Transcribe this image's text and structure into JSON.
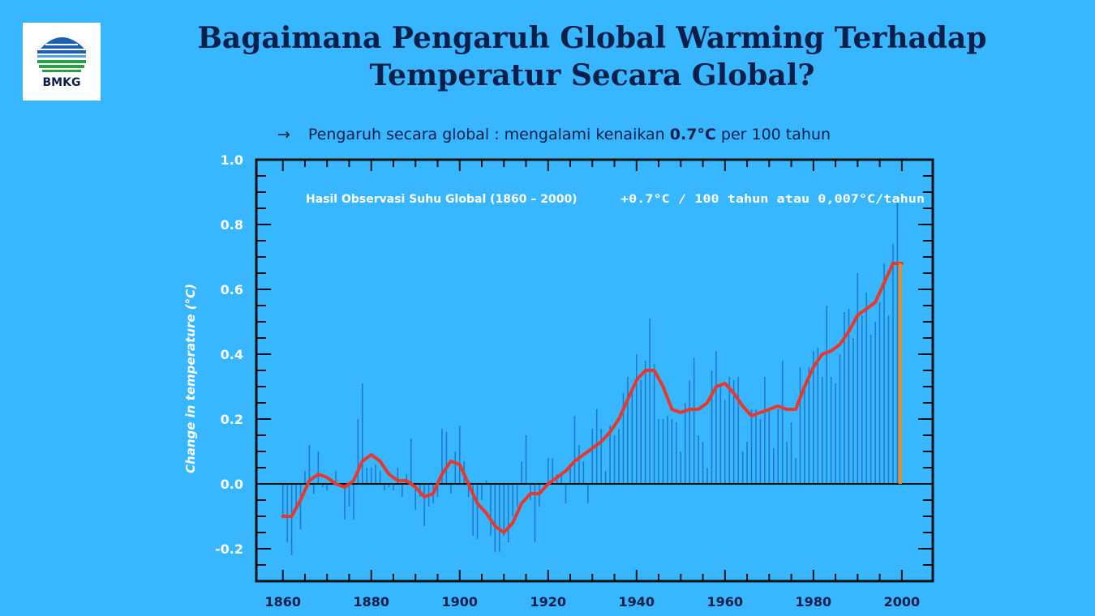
{
  "logo": {
    "text": "BMKG"
  },
  "title": {
    "line1": "Bagaimana Pengaruh Global Warming Terhadap",
    "line2": "Temperatur Secara Global?"
  },
  "subtitle": {
    "arrow": "→",
    "prefix": "Pengaruh secara global : mengalami kenaikan",
    "highlight": "0.7°C",
    "suffix": "per 100 tahun"
  },
  "colors": {
    "background": "#38b6ff",
    "bar": "#1f77c9",
    "trend": "#e8382b",
    "marker": "#f08a1c",
    "text": "#0b1f4a"
  },
  "chart_data": {
    "type": "bar",
    "ylabel": "Change in temperature (°C)",
    "xlabel": "",
    "annotation_left": "Hasil Observasi Suhu Global (1860 – 2000)",
    "annotation_right": "+0.7°C / 100 tahun atau 0,007°C/tahun",
    "xlim": [
      1854,
      2007
    ],
    "ylim": [
      -0.3,
      1.0
    ],
    "x_ticks": [
      1860,
      1880,
      1900,
      1920,
      1940,
      1960,
      1980,
      2000
    ],
    "y_ticks": [
      -0.2,
      0.0,
      0.2,
      0.4,
      0.6,
      0.8,
      1.0
    ],
    "y_tick_labels": [
      "-0.2",
      "0.0",
      "0.2",
      "0.4",
      "0.6",
      "0.8",
      "1.0"
    ],
    "years": [
      1860,
      1861,
      1862,
      1863,
      1864,
      1865,
      1866,
      1867,
      1868,
      1869,
      1870,
      1871,
      1872,
      1873,
      1874,
      1875,
      1876,
      1877,
      1878,
      1879,
      1880,
      1881,
      1882,
      1883,
      1884,
      1885,
      1886,
      1887,
      1888,
      1889,
      1890,
      1891,
      1892,
      1893,
      1894,
      1895,
      1896,
      1897,
      1898,
      1899,
      1900,
      1901,
      1902,
      1903,
      1904,
      1905,
      1906,
      1907,
      1908,
      1909,
      1910,
      1911,
      1912,
      1913,
      1914,
      1915,
      1916,
      1917,
      1918,
      1919,
      1920,
      1921,
      1922,
      1923,
      1924,
      1925,
      1926,
      1927,
      1928,
      1929,
      1930,
      1931,
      1932,
      1933,
      1934,
      1935,
      1936,
      1937,
      1938,
      1939,
      1940,
      1941,
      1942,
      1943,
      1944,
      1945,
      1946,
      1947,
      1948,
      1949,
      1950,
      1951,
      1952,
      1953,
      1954,
      1955,
      1956,
      1957,
      1958,
      1959,
      1960,
      1961,
      1962,
      1963,
      1964,
      1965,
      1966,
      1967,
      1968,
      1969,
      1970,
      1971,
      1972,
      1973,
      1974,
      1975,
      1976,
      1977,
      1978,
      1979,
      1980,
      1981,
      1982,
      1983,
      1984,
      1985,
      1986,
      1987,
      1988,
      1989,
      1990,
      1991,
      1992,
      1993,
      1994,
      1995,
      1996,
      1997,
      1998,
      1999
    ],
    "values": [
      -0.1,
      -0.18,
      -0.22,
      -0.08,
      -0.14,
      0.04,
      0.12,
      -0.03,
      0.1,
      -0.01,
      -0.02,
      0.01,
      0.04,
      -0.01,
      -0.11,
      -0.07,
      -0.11,
      0.2,
      0.31,
      0.05,
      0.05,
      0.06,
      0.04,
      -0.02,
      -0.01,
      -0.02,
      0.05,
      -0.04,
      0.03,
      0.14,
      -0.08,
      -0.04,
      -0.13,
      -0.07,
      -0.06,
      -0.04,
      0.17,
      0.16,
      -0.03,
      0.1,
      0.18,
      0.07,
      -0.04,
      -0.16,
      -0.17,
      -0.05,
      0.01,
      -0.16,
      -0.21,
      -0.21,
      -0.16,
      -0.18,
      -0.1,
      -0.07,
      0.07,
      0.15,
      -0.05,
      -0.18,
      -0.07,
      0.0,
      0.08,
      0.08,
      0.03,
      0.03,
      -0.06,
      0.06,
      0.21,
      0.12,
      0.07,
      -0.06,
      0.17,
      0.23,
      0.17,
      0.04,
      0.18,
      0.15,
      0.17,
      0.28,
      0.33,
      0.29,
      0.4,
      0.32,
      0.38,
      0.51,
      0.37,
      0.2,
      0.2,
      0.21,
      0.2,
      0.19,
      0.1,
      0.25,
      0.32,
      0.39,
      0.15,
      0.13,
      0.05,
      0.35,
      0.41,
      0.3,
      0.26,
      0.33,
      0.32,
      0.33,
      0.1,
      0.13,
      0.23,
      0.23,
      0.2,
      0.33,
      0.23,
      0.11,
      0.23,
      0.38,
      0.13,
      0.19,
      0.08,
      0.36,
      0.31,
      0.36,
      0.41,
      0.42,
      0.33,
      0.55,
      0.33,
      0.31,
      0.4,
      0.53,
      0.54,
      0.45,
      0.65,
      0.52,
      0.59,
      0.46,
      0.5,
      0.56,
      0.68,
      0.52,
      0.74,
      0.87
    ],
    "trend": [
      [
        1860,
        -0.1
      ],
      [
        1862,
        -0.1
      ],
      [
        1864,
        -0.05
      ],
      [
        1866,
        0.01
      ],
      [
        1868,
        0.03
      ],
      [
        1870,
        0.02
      ],
      [
        1872,
        0.0
      ],
      [
        1874,
        -0.01
      ],
      [
        1876,
        0.01
      ],
      [
        1878,
        0.07
      ],
      [
        1880,
        0.09
      ],
      [
        1882,
        0.07
      ],
      [
        1884,
        0.03
      ],
      [
        1886,
        0.01
      ],
      [
        1888,
        0.01
      ],
      [
        1890,
        -0.01
      ],
      [
        1892,
        -0.04
      ],
      [
        1894,
        -0.03
      ],
      [
        1896,
        0.03
      ],
      [
        1898,
        0.07
      ],
      [
        1900,
        0.06
      ],
      [
        1902,
        0.0
      ],
      [
        1904,
        -0.06
      ],
      [
        1906,
        -0.09
      ],
      [
        1908,
        -0.13
      ],
      [
        1910,
        -0.15
      ],
      [
        1912,
        -0.12
      ],
      [
        1914,
        -0.06
      ],
      [
        1916,
        -0.03
      ],
      [
        1918,
        -0.03
      ],
      [
        1920,
        0.0
      ],
      [
        1922,
        0.02
      ],
      [
        1924,
        0.04
      ],
      [
        1926,
        0.07
      ],
      [
        1928,
        0.09
      ],
      [
        1930,
        0.11
      ],
      [
        1932,
        0.13
      ],
      [
        1934,
        0.16
      ],
      [
        1936,
        0.2
      ],
      [
        1938,
        0.26
      ],
      [
        1940,
        0.32
      ],
      [
        1942,
        0.35
      ],
      [
        1944,
        0.35
      ],
      [
        1946,
        0.3
      ],
      [
        1948,
        0.23
      ],
      [
        1950,
        0.22
      ],
      [
        1952,
        0.23
      ],
      [
        1954,
        0.23
      ],
      [
        1956,
        0.25
      ],
      [
        1958,
        0.3
      ],
      [
        1960,
        0.31
      ],
      [
        1962,
        0.28
      ],
      [
        1964,
        0.24
      ],
      [
        1966,
        0.21
      ],
      [
        1968,
        0.22
      ],
      [
        1970,
        0.23
      ],
      [
        1972,
        0.24
      ],
      [
        1974,
        0.23
      ],
      [
        1976,
        0.23
      ],
      [
        1978,
        0.3
      ],
      [
        1980,
        0.36
      ],
      [
        1982,
        0.4
      ],
      [
        1984,
        0.41
      ],
      [
        1986,
        0.43
      ],
      [
        1988,
        0.47
      ],
      [
        1990,
        0.52
      ],
      [
        1992,
        0.54
      ],
      [
        1994,
        0.56
      ],
      [
        1996,
        0.62
      ],
      [
        1998,
        0.68
      ],
      [
        2000,
        0.68
      ]
    ],
    "marker": {
      "year": 1999.6,
      "value": 0.68
    }
  }
}
